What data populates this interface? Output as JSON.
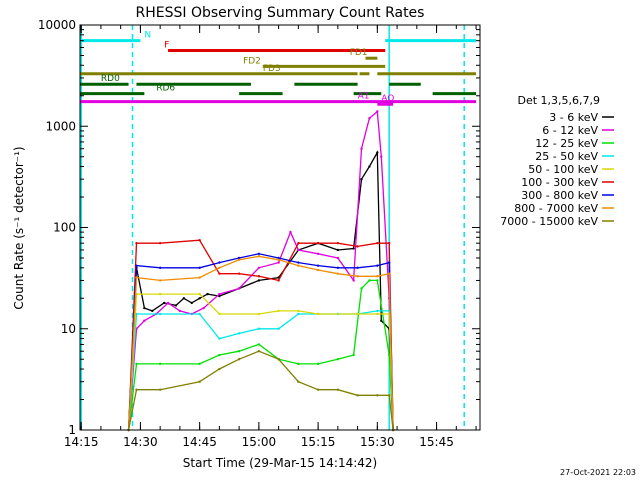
{
  "page": {
    "title": "RHESSI Observing Summary Count Rates",
    "footer_timestamp": "27-Oct-2021 22:03"
  },
  "chart_data": {
    "type": "line",
    "title": "RHESSI Observing Summary Count Rates",
    "xlabel": "Start Time (29-Mar-15 14:14:42)",
    "ylabel": "Count Rate (s⁻¹ detector⁻¹)",
    "y_scale": "log",
    "ylim": [
      1,
      10000
    ],
    "xlim": [
      "14:14:42",
      "15:56:00"
    ],
    "x_ticks": [
      "14:15",
      "14:30",
      "14:45",
      "15:00",
      "15:15",
      "15:30",
      "15:45"
    ],
    "y_ticks": [
      "1",
      "10",
      "100",
      "1000",
      "10000"
    ],
    "grid": false,
    "legend": {
      "placement": "right",
      "title": "Det 1,3,5,6,7,9",
      "entries": [
        {
          "label": "3 - 6 keV",
          "color": "#000000"
        },
        {
          "label": "6 - 12 keV",
          "color": "#e000e0"
        },
        {
          "label": "12 - 25 keV",
          "color": "#00e000"
        },
        {
          "label": "25 - 50 keV",
          "color": "#00e8e8"
        },
        {
          "label": "50 - 100 keV",
          "color": "#d8d800"
        },
        {
          "label": "100 - 300 keV",
          "color": "#e00000"
        },
        {
          "label": "300 - 800 keV",
          "color": "#0000e0"
        },
        {
          "label": "800 - 7000 keV",
          "color": "#f08c00"
        },
        {
          "label": "7000 - 15000 keV",
          "color": "#808000"
        }
      ]
    },
    "flag_bars": [
      {
        "label": "N",
        "color": "#00e8e8",
        "level": 7000,
        "segments": [
          [
            "14:14:42",
            "14:30:00"
          ],
          [
            "15:32:00",
            "15:55:00"
          ]
        ],
        "label_at": "14:31",
        "label_color": "#00e8e8"
      },
      {
        "label": "F",
        "color": "#e00000",
        "level": 5600,
        "segments": [
          [
            "14:37:00",
            "15:32:00"
          ]
        ],
        "label_at": "14:36",
        "label_color": "#e00000"
      },
      {
        "label": "FD1",
        "color": "#808000",
        "level": 4700,
        "segments": [
          [
            "15:27:00",
            "15:30:00"
          ]
        ],
        "label_at": "15:23",
        "label_color": "#808000"
      },
      {
        "label": "FD2",
        "color": "#808000",
        "level": 3900,
        "segments": [
          [
            "15:01:00",
            "15:32:00"
          ]
        ],
        "label_at": "14:56",
        "label_color": "#808000"
      },
      {
        "label": "FD3",
        "color": "#808000",
        "level": 3300,
        "segments": [
          [
            "14:14:42",
            "15:25:00"
          ],
          [
            "15:25:30",
            "15:28:00"
          ],
          [
            "15:30:00",
            "15:55:00"
          ]
        ],
        "label_at": "15:01",
        "label_color": "#808000"
      },
      {
        "label": "RD0",
        "color": "#006000",
        "level": 2600,
        "segments": [
          [
            "14:14:42",
            "14:27:00"
          ],
          [
            "14:29:00",
            "14:58:00"
          ],
          [
            "15:09:00",
            "15:25:00"
          ],
          [
            "15:33:00",
            "15:41:00"
          ]
        ],
        "label_at": "14:20",
        "label_color": "#006000"
      },
      {
        "label": "RD6",
        "color": "#006000",
        "level": 2100,
        "segments": [
          [
            "14:14:42",
            "14:31:00"
          ],
          [
            "14:55:00",
            "15:06:00"
          ],
          [
            "15:24:00",
            "15:31:00"
          ],
          [
            "15:44:00",
            "15:55:00"
          ]
        ],
        "label_at": "14:34",
        "label_color": "#006000"
      },
      {
        "label": "AO",
        "color": "#e000e0",
        "level": 1650,
        "segments": [
          [
            "15:30:00",
            "15:34:00"
          ]
        ],
        "label_at": "15:31",
        "label_color": "#e000e0"
      },
      {
        "label": "A1",
        "color": "#e000e0",
        "level": 1750,
        "segments": [
          [
            "14:14:42",
            "15:55:00"
          ]
        ],
        "label_at": "15:25",
        "label_color": "#e000e0"
      }
    ],
    "vertical_markers": [
      {
        "color": "#00e8e8",
        "style": "solid",
        "times": [
          "14:15:00",
          "15:33:00"
        ]
      },
      {
        "color": "#00e8e8",
        "style": "dashed",
        "times": [
          "14:28:00",
          "15:52:00"
        ]
      }
    ],
    "series": [
      {
        "name": "3 - 6 keV",
        "color": "#000000",
        "x": [
          "14:27",
          "14:29",
          "14:31",
          "14:33",
          "14:36",
          "14:39",
          "14:41",
          "14:43",
          "14:45",
          "14:47",
          "14:50",
          "14:55",
          "15:00",
          "15:05",
          "15:10",
          "15:15",
          "15:20",
          "15:24",
          "15:26",
          "15:28",
          "15:30",
          "15:31",
          "15:33",
          "15:34"
        ],
        "y": [
          1,
          40,
          16,
          15,
          18,
          17,
          20,
          18,
          20,
          22,
          21,
          25,
          30,
          32,
          60,
          70,
          60,
          62,
          300,
          400,
          550,
          12,
          10,
          1
        ]
      },
      {
        "name": "6 - 12 keV",
        "color": "#e000e0",
        "x": [
          "14:27",
          "14:29",
          "14:31",
          "14:34",
          "14:37",
          "14:40",
          "14:43",
          "14:46",
          "14:50",
          "14:55",
          "15:00",
          "15:05",
          "15:08",
          "15:10",
          "15:15",
          "15:20",
          "15:24",
          "15:26",
          "15:28",
          "15:30",
          "15:31",
          "15:33",
          "15:34"
        ],
        "y": [
          1,
          10,
          12,
          14,
          18,
          15,
          14,
          16,
          22,
          25,
          40,
          45,
          90,
          60,
          55,
          50,
          30,
          600,
          1200,
          1400,
          500,
          20,
          1
        ]
      },
      {
        "name": "12 - 25 keV",
        "color": "#00e000",
        "x": [
          "14:27",
          "14:29",
          "14:35",
          "14:45",
          "14:50",
          "14:55",
          "15:00",
          "15:05",
          "15:10",
          "15:15",
          "15:20",
          "15:24",
          "15:26",
          "15:28",
          "15:30",
          "15:33",
          "15:34"
        ],
        "y": [
          1,
          4.5,
          4.5,
          4.5,
          5.5,
          6,
          7,
          5,
          4.5,
          4.5,
          5,
          5.5,
          25,
          30,
          30,
          5.5,
          1
        ]
      },
      {
        "name": "25 - 50 keV",
        "color": "#00e8e8",
        "x": [
          "14:27",
          "14:29",
          "14:35",
          "14:45",
          "14:50",
          "14:55",
          "15:00",
          "15:05",
          "15:10",
          "15:15",
          "15:20",
          "15:25",
          "15:30",
          "15:33",
          "15:34"
        ],
        "y": [
          1,
          14,
          14,
          14,
          8,
          9,
          10,
          10,
          14,
          14,
          14,
          14,
          15,
          15,
          1
        ]
      },
      {
        "name": "50 - 100 keV",
        "color": "#d8d800",
        "x": [
          "14:27",
          "14:29",
          "14:35",
          "14:45",
          "14:50",
          "15:00",
          "15:05",
          "15:10",
          "15:15",
          "15:25",
          "15:30",
          "15:33",
          "15:34"
        ],
        "y": [
          1,
          22,
          22,
          22,
          14,
          14,
          15,
          15,
          14,
          14,
          14,
          14,
          1
        ]
      },
      {
        "name": "100 - 300 keV",
        "color": "#e00000",
        "x": [
          "14:27",
          "14:29",
          "14:35",
          "14:45",
          "14:50",
          "14:55",
          "15:00",
          "15:05",
          "15:10",
          "15:15",
          "15:20",
          "15:25",
          "15:30",
          "15:33",
          "15:34"
        ],
        "y": [
          1,
          70,
          70,
          75,
          35,
          35,
          33,
          30,
          70,
          70,
          70,
          65,
          70,
          70,
          1
        ]
      },
      {
        "name": "300 - 800 keV",
        "color": "#0000e0",
        "x": [
          "14:27",
          "14:29",
          "14:35",
          "14:45",
          "14:50",
          "14:55",
          "15:00",
          "15:05",
          "15:10",
          "15:15",
          "15:20",
          "15:25",
          "15:30",
          "15:33",
          "15:34"
        ],
        "y": [
          1,
          42,
          40,
          40,
          45,
          50,
          55,
          50,
          45,
          42,
          40,
          40,
          42,
          45,
          1
        ]
      },
      {
        "name": "800 - 7000 keV",
        "color": "#f08c00",
        "x": [
          "14:27",
          "14:29",
          "14:35",
          "14:45",
          "14:50",
          "14:55",
          "15:00",
          "15:05",
          "15:10",
          "15:15",
          "15:20",
          "15:25",
          "15:30",
          "15:33",
          "15:34"
        ],
        "y": [
          1,
          32,
          30,
          32,
          40,
          48,
          52,
          48,
          42,
          38,
          35,
          33,
          33,
          35,
          1
        ]
      },
      {
        "name": "7000 - 15000 keV",
        "color": "#808000",
        "x": [
          "14:27",
          "14:29",
          "14:35",
          "14:45",
          "14:50",
          "14:55",
          "15:00",
          "15:05",
          "15:10",
          "15:15",
          "15:20",
          "15:25",
          "15:30",
          "15:33",
          "15:34"
        ],
        "y": [
          1,
          2.5,
          2.5,
          3,
          4,
          5,
          6,
          5,
          3,
          2.5,
          2.5,
          2.2,
          2.2,
          2.2,
          1
        ]
      }
    ]
  }
}
